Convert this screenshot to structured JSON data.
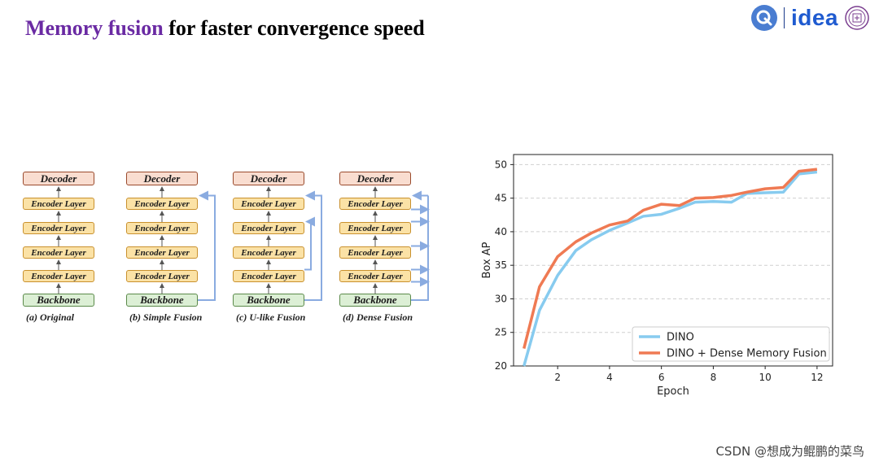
{
  "header": {
    "title_highlight": "Memory fusion",
    "title_rest": " for faster convergence speed",
    "logo_text": "idea",
    "accent_color": "#6a2aa3"
  },
  "diagram": {
    "decoder_label": "Decoder",
    "encoder_label": "Encoder Layer",
    "backbone_label": "Backbone",
    "captions": [
      "(a) Original",
      "(b) Simple Fusion",
      "(c) U-like Fusion",
      "(d) Dense Fusion"
    ]
  },
  "chart_data": {
    "type": "line",
    "xlabel": "Epoch",
    "ylabel": "Box AP",
    "xlim": [
      0.3,
      12.6
    ],
    "ylim": [
      20,
      51.5
    ],
    "xticks": [
      2,
      4,
      6,
      8,
      10,
      12
    ],
    "yticks": [
      20,
      25,
      30,
      35,
      40,
      45,
      50
    ],
    "grid": "horizontal dashed",
    "legend_position": "bottom-right",
    "series": [
      {
        "name": "DINO",
        "color": "#87cbef",
        "x": [
          0.7,
          1.3,
          2,
          2.7,
          3.3,
          4,
          4.7,
          5.3,
          6,
          6.7,
          7.3,
          8,
          8.7,
          9.3,
          10,
          10.7,
          11.3,
          12
        ],
        "y": [
          20.0,
          28.3,
          33.5,
          37.2,
          38.8,
          40.2,
          41.3,
          42.3,
          42.6,
          43.5,
          44.4,
          44.5,
          44.4,
          45.7,
          45.8,
          45.9,
          48.6,
          48.9
        ]
      },
      {
        "name": "DINO + Dense Memory Fusion",
        "color": "#ef7a53",
        "x": [
          0.7,
          1.3,
          2,
          2.7,
          3.3,
          4,
          4.7,
          5.3,
          6,
          6.7,
          7.3,
          8,
          8.7,
          9.3,
          10,
          10.7,
          11.3,
          12
        ],
        "y": [
          22.6,
          31.8,
          36.3,
          38.5,
          39.8,
          41.0,
          41.6,
          43.2,
          44.1,
          43.9,
          45.0,
          45.1,
          45.4,
          45.9,
          46.4,
          46.6,
          49.0,
          49.3
        ]
      }
    ]
  },
  "watermark": "CSDN @想成为鲲鹏的菜鸟"
}
